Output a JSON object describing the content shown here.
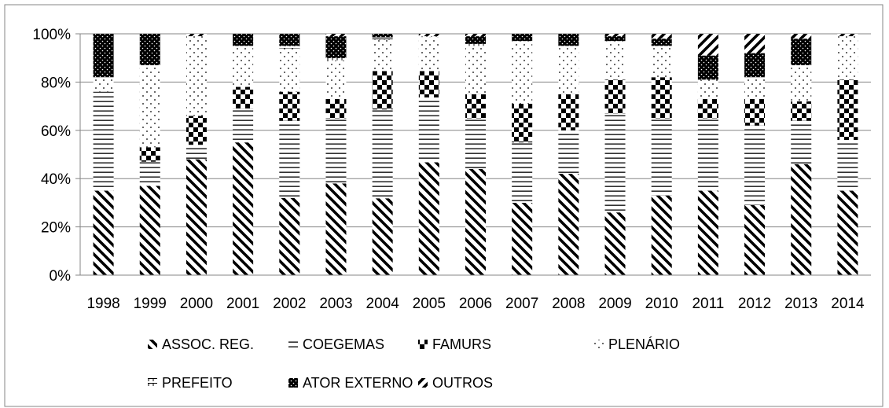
{
  "chart_data": {
    "type": "bar",
    "stacked": true,
    "percent_stacked": true,
    "categories": [
      "1998",
      "1999",
      "2000",
      "2001",
      "2002",
      "2003",
      "2004",
      "2005",
      "2006",
      "2007",
      "2008",
      "2009",
      "2010",
      "2011",
      "2012",
      "2013",
      "2014"
    ],
    "ylim": [
      0,
      100
    ],
    "yticks": [
      0,
      20,
      40,
      60,
      80,
      100
    ],
    "ytick_labels": [
      "0%",
      "20%",
      "40%",
      "60%",
      "80%",
      "100%"
    ],
    "grid": true,
    "legend_position": "bottom",
    "series": [
      {
        "name": "ASSOC. REG.",
        "pattern": "diagonal-down",
        "values": [
          35,
          37,
          48,
          55,
          32,
          38,
          32,
          47,
          44,
          30,
          42,
          26,
          33,
          35,
          29,
          46,
          35
        ]
      },
      {
        "name": "COEGEMAS",
        "pattern": "horizontal",
        "values": [
          41,
          10,
          6,
          14,
          32,
          27,
          37,
          27,
          21,
          25,
          18,
          41,
          32,
          30,
          33,
          18,
          21
        ]
      },
      {
        "name": "FAMURS",
        "pattern": "checker",
        "values": [
          0,
          6,
          12,
          9,
          12,
          8,
          16,
          11,
          10,
          16,
          15,
          14,
          17,
          8,
          11,
          8,
          25
        ]
      },
      {
        "name": "PLENÁRIO",
        "pattern": "dots",
        "values": [
          6,
          34,
          33,
          17,
          18,
          16,
          13,
          14,
          20,
          26,
          20,
          16,
          13,
          8,
          9,
          15,
          18
        ]
      },
      {
        "name": "PREFEITO",
        "pattern": "plus",
        "values": [
          0,
          0,
          0,
          0,
          1,
          1,
          1,
          0.5,
          1,
          0,
          0,
          0,
          0,
          0,
          0,
          0,
          0
        ]
      },
      {
        "name": "ATOR EXTERNO",
        "pattern": "solid-dots",
        "values": [
          18,
          13,
          0,
          5,
          5,
          9,
          1.5,
          0,
          3,
          3,
          5,
          2,
          3,
          10,
          10,
          11,
          0
        ]
      },
      {
        "name": "OUTROS",
        "pattern": "diagonal-up",
        "values": [
          0,
          0,
          1,
          0,
          0,
          1,
          0,
          1,
          1,
          0,
          0,
          1,
          2,
          9,
          8,
          2,
          1
        ]
      }
    ]
  }
}
